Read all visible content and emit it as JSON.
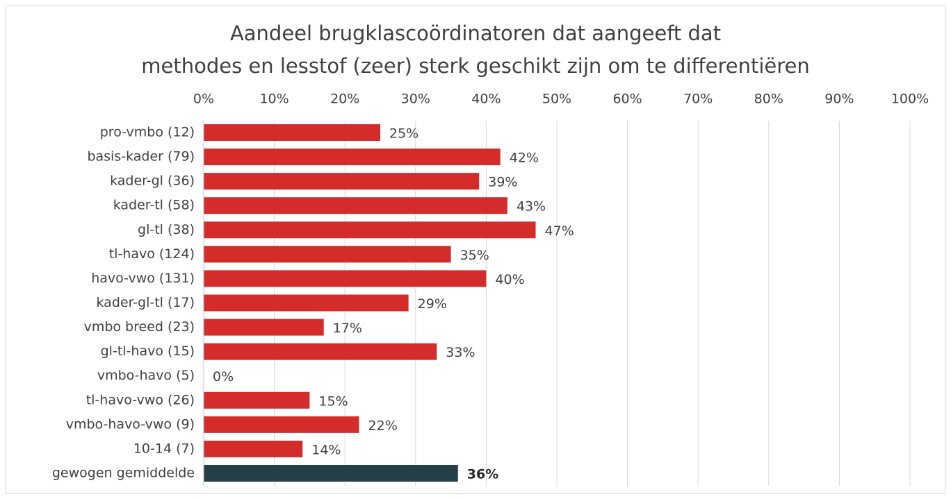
{
  "chart_data": {
    "type": "bar",
    "orientation": "horizontal",
    "title": [
      "Aandeel brugklascoördinatoren dat aangeeft dat",
      "methodes en lesstof (zeer) sterk geschikt zijn om te differentiëren"
    ],
    "categories": [
      "pro-vmbo (12)",
      "basis-kader (79)",
      "kader-gl (36)",
      "kader-tl (58)",
      "gl-tl (38)",
      "tl-havo (124)",
      "havo-vwo (131)",
      "kader-gl-tl (17)",
      "vmbo breed (23)",
      "gl-tl-havo (15)",
      "vmbo-havo (5)",
      "tl-havo-vwo (26)",
      "vmbo-havo-vwo (9)",
      "10-14 (7)",
      "gewogen gemiddelde"
    ],
    "values": [
      25,
      42,
      39,
      43,
      47,
      35,
      40,
      29,
      17,
      33,
      0,
      15,
      22,
      14,
      36
    ],
    "value_labels": [
      "25%",
      "42%",
      "39%",
      "43%",
      "47%",
      "35%",
      "40%",
      "29%",
      "17%",
      "33%",
      "0%",
      "15%",
      "22%",
      "14%",
      "36%"
    ],
    "colors": [
      "#d42b2b",
      "#d42b2b",
      "#d42b2b",
      "#d42b2b",
      "#d42b2b",
      "#d42b2b",
      "#d42b2b",
      "#d42b2b",
      "#d42b2b",
      "#d42b2b",
      "#d42b2b",
      "#d42b2b",
      "#d42b2b",
      "#d42b2b",
      "#253f47"
    ],
    "xlim": [
      0,
      100
    ],
    "xticks": [
      {
        "value": 0,
        "label": "0%"
      },
      {
        "value": 10,
        "label": "10%"
      },
      {
        "value": 20,
        "label": "20%"
      },
      {
        "value": 30,
        "label": "30%"
      },
      {
        "value": 40,
        "label": "40%"
      },
      {
        "value": 50,
        "label": "50%"
      },
      {
        "value": 60,
        "label": "60%"
      },
      {
        "value": 70,
        "label": "70%"
      },
      {
        "value": 80,
        "label": "80%"
      },
      {
        "value": 90,
        "label": "90%"
      },
      {
        "value": 100,
        "label": "100%"
      }
    ],
    "grid": true
  }
}
